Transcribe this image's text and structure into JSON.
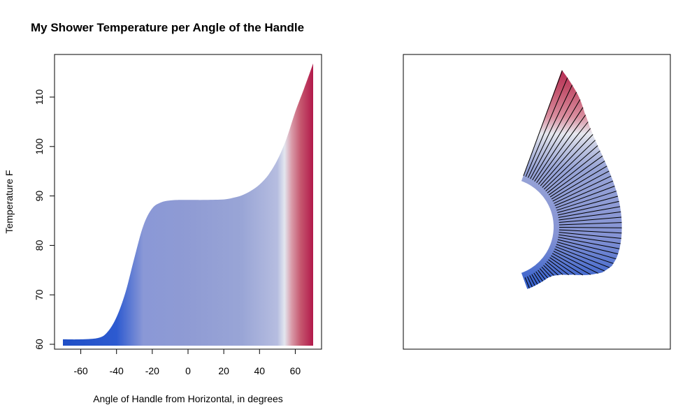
{
  "title": "My Shower Temperature per Angle of the Handle",
  "chart_data": [
    {
      "type": "area",
      "xlabel": "Angle of Handle from Horizontal, in degrees",
      "ylabel": "Temperature F",
      "xlim": [
        -75,
        75
      ],
      "ylim": [
        59,
        118
      ],
      "x_ticks": [
        -60,
        -40,
        -20,
        0,
        20,
        40,
        60
      ],
      "y_ticks": [
        60,
        70,
        80,
        90,
        100,
        110
      ],
      "grid": false,
      "baseline": 60,
      "x": [
        -70,
        -60,
        -50,
        -45,
        -40,
        -35,
        -30,
        -25,
        -20,
        -15,
        -10,
        -5,
        0,
        10,
        20,
        25,
        30,
        35,
        40,
        45,
        50,
        55,
        60,
        65,
        70
      ],
      "y": [
        61,
        61,
        61.3,
        62.5,
        65.5,
        70.5,
        77.5,
        84,
        87.5,
        88.7,
        89.1,
        89.2,
        89.2,
        89.2,
        89.3,
        89.6,
        90.1,
        91,
        92.3,
        94.3,
        97.3,
        101.5,
        107,
        111.8,
        116.8
      ],
      "color_stops": [
        {
          "x": -70,
          "color": "#1f4fc6"
        },
        {
          "x": -40,
          "color": "#2d5ad0"
        },
        {
          "x": -25,
          "color": "#8a98d6"
        },
        {
          "x": 0,
          "color": "#8f9bd4"
        },
        {
          "x": 30,
          "color": "#99a5d6"
        },
        {
          "x": 50,
          "color": "#b6bde0"
        },
        {
          "x": 54,
          "color": "#e3e6ef"
        },
        {
          "x": 58,
          "color": "#d99aa8"
        },
        {
          "x": 63,
          "color": "#c5576f"
        },
        {
          "x": 70,
          "color": "#b2194a"
        }
      ]
    },
    {
      "type": "other",
      "description_kind": "polar fan",
      "angle_range_deg": [
        -70,
        70
      ],
      "uses_same_series": true
    }
  ]
}
